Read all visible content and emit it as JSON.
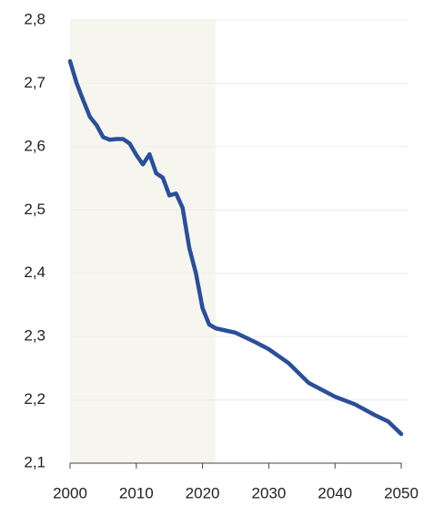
{
  "chart_data": {
    "type": "line",
    "x": [
      2000,
      2001,
      2002,
      2003,
      2004,
      2005,
      2006,
      2007,
      2008,
      2009,
      2010,
      2011,
      2012,
      2013,
      2014,
      2015,
      2016,
      2017,
      2018,
      2019,
      2020,
      2021,
      2022,
      2025,
      2028,
      2030,
      2033,
      2036,
      2040,
      2043,
      2046,
      2048,
      2050
    ],
    "series": [
      {
        "color": "#2a4f9a",
        "values": [
          2.735,
          2.7,
          2.673,
          2.647,
          2.634,
          2.615,
          2.611,
          2.612,
          2.612,
          2.605,
          2.587,
          2.572,
          2.588,
          2.558,
          2.551,
          2.523,
          2.526,
          2.503,
          2.44,
          2.4,
          2.345,
          2.319,
          2.313,
          2.306,
          2.291,
          2.28,
          2.258,
          2.227,
          2.205,
          2.193,
          2.176,
          2.166,
          2.146
        ]
      }
    ],
    "xlim": [
      2000,
      2050
    ],
    "xticks": [
      2000,
      2010,
      2020,
      2030,
      2040,
      2050
    ],
    "ylim": [
      2.1,
      2.8
    ],
    "yticks": [
      {
        "value": 2.1,
        "label": "2,1"
      },
      {
        "value": 2.2,
        "label": "2,2"
      },
      {
        "value": 2.3,
        "label": "2,3"
      },
      {
        "value": 2.4,
        "label": "2,4"
      },
      {
        "value": 2.5,
        "label": "2,5"
      },
      {
        "value": 2.6,
        "label": "2,6"
      },
      {
        "value": 2.7,
        "label": "2,7"
      },
      {
        "value": 2.8,
        "label": "2,8"
      }
    ],
    "grid": true,
    "shade": {
      "range": [
        2000,
        2022
      ],
      "color": "#f6f6ef"
    }
  }
}
